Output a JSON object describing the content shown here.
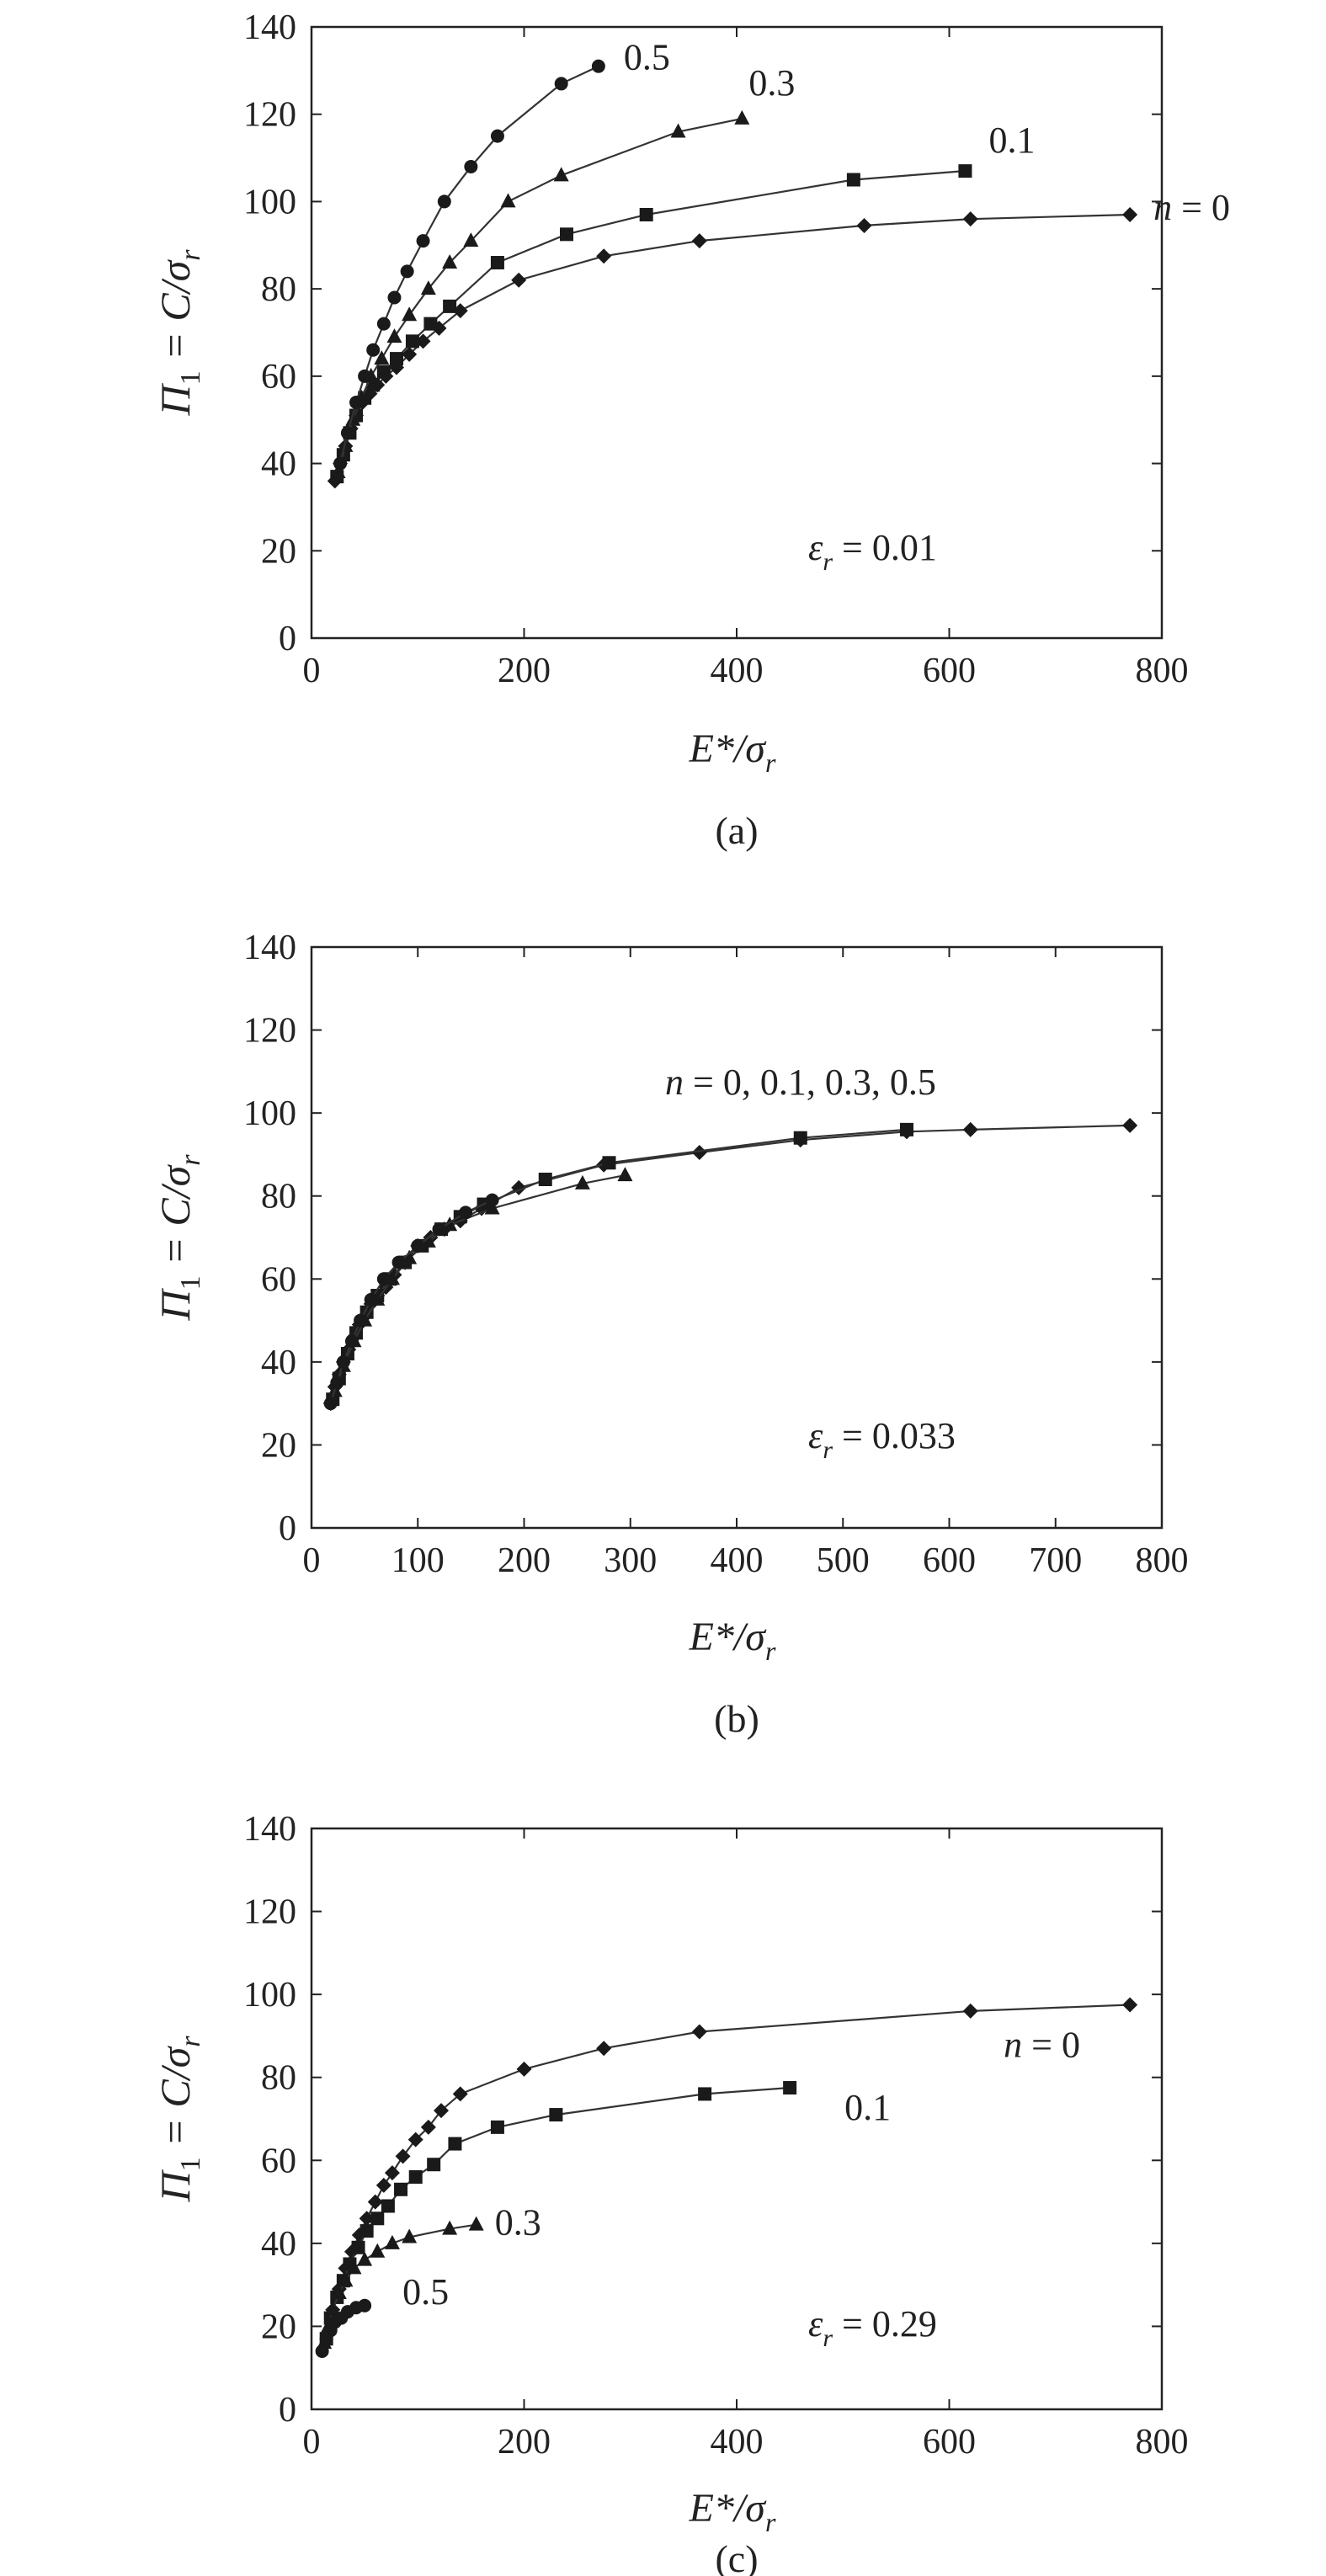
{
  "chart_data": [
    {
      "type": "line",
      "caption": "(a)",
      "annotation": {
        "symbol": "ε",
        "sub": "r",
        "value": "= 0.01"
      },
      "xlabel": {
        "main": "E*/σ",
        "sub": "r"
      },
      "ylabel": {
        "main": "Π",
        "sub1": "1",
        "mid": " = C/σ",
        "sub2": "r"
      },
      "xlim": [
        0,
        800
      ],
      "ylim": [
        0,
        140
      ],
      "xticks": [
        "0",
        "200",
        "400",
        "600",
        "800"
      ],
      "yticks": [
        "0",
        "20",
        "40",
        "60",
        "80",
        "100",
        "120",
        "140"
      ],
      "grid": false,
      "series": [
        {
          "name": "n = 0",
          "label_parts": {
            "italic": "n",
            "rest": " = 0"
          },
          "marker": "diamond",
          "x": [
            22,
            27,
            32,
            37,
            42,
            48,
            55,
            62,
            70,
            80,
            92,
            105,
            120,
            140,
            195,
            275,
            365,
            520,
            620,
            770
          ],
          "y": [
            36,
            40,
            44,
            48,
            51,
            54,
            56,
            58,
            60,
            62,
            65,
            68,
            71,
            75,
            82,
            87.5,
            91,
            94.5,
            96,
            97
          ]
        },
        {
          "name": "0.1",
          "label_parts": {
            "italic": "",
            "rest": "0.1"
          },
          "marker": "square",
          "x": [
            24,
            30,
            36,
            42,
            50,
            58,
            68,
            80,
            95,
            112,
            130,
            175,
            240,
            315,
            510,
            615
          ],
          "y": [
            37,
            42,
            47,
            51,
            55,
            58,
            61,
            64,
            68,
            72,
            76,
            86,
            92.5,
            97,
            105,
            107
          ]
        },
        {
          "name": "0.3",
          "label_parts": {
            "italic": "",
            "rest": "0.3"
          },
          "marker": "triangle",
          "x": [
            25,
            32,
            39,
            47,
            56,
            66,
            78,
            92,
            110,
            130,
            150,
            185,
            235,
            345,
            405
          ],
          "y": [
            38,
            44,
            50,
            55,
            60,
            64,
            69,
            74,
            80,
            86,
            91,
            100,
            106,
            116,
            119
          ]
        },
        {
          "name": "0.5",
          "label_parts": {
            "italic": "",
            "rest": "0.5"
          },
          "marker": "circle",
          "x": [
            27,
            34,
            42,
            50,
            58,
            68,
            78,
            90,
            105,
            125,
            150,
            175,
            235,
            270
          ],
          "y": [
            40,
            47,
            54,
            60,
            66,
            72,
            78,
            84,
            91,
            100,
            108,
            115,
            127,
            131
          ]
        }
      ]
    },
    {
      "type": "line",
      "caption": "(b)",
      "annotation": {
        "symbol": "ε",
        "sub": "r",
        "value": "= 0.033"
      },
      "xlabel": {
        "main": "E*/σ",
        "sub": "r"
      },
      "ylabel": {
        "main": "Π",
        "sub1": "1",
        "mid": " = C/σ",
        "sub2": "r"
      },
      "xlim": [
        0,
        800
      ],
      "ylim": [
        0,
        140
      ],
      "xticks": [
        "0",
        "100",
        "200",
        "300",
        "400",
        "500",
        "600",
        "700",
        "800"
      ],
      "yticks": [
        "0",
        "20",
        "40",
        "60",
        "80",
        "100",
        "120",
        "140"
      ],
      "grid": false,
      "series_note": {
        "italic": "n",
        "rest": " = 0, 0.1, 0.3, 0.5"
      },
      "series": [
        {
          "name": "n = 0",
          "marker": "diamond",
          "x": [
            18,
            22,
            26,
            30,
            35,
            40,
            45,
            50,
            56,
            62,
            70,
            78,
            88,
            100,
            112,
            125,
            140,
            160,
            195,
            275,
            365,
            460,
            560,
            620,
            770
          ],
          "y": [
            30,
            34,
            37,
            40,
            43,
            46,
            49,
            51,
            54,
            56,
            58,
            61,
            64,
            68,
            70,
            72,
            74,
            77,
            82,
            87.5,
            90.5,
            93.5,
            95.5,
            96,
            97
          ]
        },
        {
          "name": "0.1",
          "marker": "square",
          "x": [
            20,
            26,
            34,
            42,
            52,
            62,
            74,
            88,
            104,
            122,
            140,
            162,
            220,
            280,
            460,
            560
          ],
          "y": [
            31,
            36,
            42,
            47,
            52,
            56,
            60,
            64,
            68,
            72,
            75,
            78,
            84,
            88,
            94,
            96
          ]
        },
        {
          "name": "0.3",
          "marker": "triangle",
          "x": [
            22,
            30,
            40,
            50,
            62,
            76,
            92,
            110,
            130,
            170,
            255,
            295
          ],
          "y": [
            33,
            39,
            45,
            50,
            55,
            60,
            65,
            69,
            73,
            77,
            83,
            85
          ]
        },
        {
          "name": "0.5",
          "marker": "circle",
          "x": [
            18,
            24,
            30,
            38,
            46,
            56,
            68,
            82,
            100,
            120,
            145,
            170
          ],
          "y": [
            30,
            35,
            40,
            45,
            50,
            55,
            60,
            64,
            68,
            72,
            76,
            79
          ]
        }
      ]
    },
    {
      "type": "line",
      "caption": "(c)",
      "annotation": {
        "symbol": "ε",
        "sub": "r",
        "value": "= 0.29"
      },
      "xlabel": {
        "main": "E*/σ",
        "sub": "r"
      },
      "ylabel": {
        "main": "Π",
        "sub1": "1",
        "mid": " = C/σ",
        "sub2": "r"
      },
      "xlim": [
        0,
        800
      ],
      "ylim": [
        0,
        140
      ],
      "xticks": [
        "0",
        "200",
        "400",
        "600",
        "800"
      ],
      "yticks": [
        "0",
        "20",
        "40",
        "60",
        "80",
        "100",
        "120",
        "140"
      ],
      "grid": false,
      "series": [
        {
          "name": "n = 0",
          "label_parts": {
            "italic": "n",
            "rest": " = 0"
          },
          "marker": "diamond",
          "x": [
            15,
            20,
            26,
            32,
            38,
            45,
            52,
            60,
            68,
            76,
            86,
            98,
            110,
            122,
            140,
            200,
            275,
            365,
            620,
            770
          ],
          "y": [
            18,
            24,
            29,
            34,
            38,
            42,
            46,
            50,
            54,
            57,
            61,
            65,
            68,
            72,
            76,
            82,
            87,
            91,
            96,
            97.5
          ]
        },
        {
          "name": "0.1",
          "label_parts": {
            "italic": "",
            "rest": "0.1"
          },
          "marker": "square",
          "x": [
            14,
            18,
            24,
            30,
            36,
            44,
            52,
            62,
            72,
            84,
            98,
            115,
            135,
            175,
            230,
            370,
            450
          ],
          "y": [
            17,
            22,
            27,
            31,
            35,
            39,
            43,
            46,
            49,
            53,
            56,
            59,
            64,
            68,
            71,
            76,
            77.5
          ]
        },
        {
          "name": "0.3",
          "label_parts": {
            "italic": "",
            "rest": "0.3"
          },
          "marker": "triangle",
          "x": [
            12,
            16,
            20,
            26,
            32,
            40,
            50,
            62,
            76,
            92,
            130,
            155
          ],
          "y": [
            16,
            20,
            24,
            28,
            31,
            34,
            36,
            38,
            40,
            41.5,
            43.5,
            44.5
          ]
        },
        {
          "name": "0.5",
          "label_parts": {
            "italic": "",
            "rest": "0.5"
          },
          "marker": "circle",
          "x": [
            10,
            14,
            18,
            22,
            28,
            34,
            42,
            50
          ],
          "y": [
            14,
            17,
            19,
            21,
            22,
            23.5,
            24.5,
            25
          ]
        }
      ]
    }
  ]
}
